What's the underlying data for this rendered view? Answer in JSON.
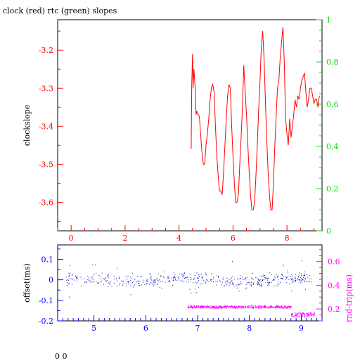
{
  "title": "clock (red) rtc (green) slopes",
  "footer": "0 0",
  "colors": {
    "frame": "#000000",
    "left_axis_top": "#ff0000",
    "right_axis_top": "#00e000",
    "clock_line": "#ff0000",
    "bottom_axis": "#0000ff",
    "offset_points": "#0000cc",
    "rtt_points": "#ff00ff",
    "right_axis_bottom": "#ff00ff"
  },
  "chart_data": [
    {
      "type": "line",
      "title": "clock (red) rtc (green) slopes",
      "ylabel": "clockslope",
      "xlim": [
        -0.5,
        9.3
      ],
      "ylim": [
        -3.675,
        -3.12
      ],
      "y2lim": [
        0,
        1
      ],
      "xticks": [
        0,
        2,
        4,
        6,
        8
      ],
      "yticks": [
        -3.2,
        -3.3,
        -3.4,
        -3.5,
        -3.6
      ],
      "y2ticks": [
        0,
        0.2,
        0.4,
        0.6,
        0.8,
        1
      ],
      "series": [
        {
          "name": "clock",
          "color": "red",
          "x": [
            4.45,
            4.47,
            4.5,
            4.52,
            4.55,
            4.58,
            4.6,
            4.63,
            4.66,
            4.7,
            4.73,
            4.76,
            4.8,
            4.85,
            4.9,
            4.95,
            5.0,
            5.05,
            5.1,
            5.15,
            5.2,
            5.25,
            5.3,
            5.35,
            5.4,
            5.45,
            5.5,
            5.55,
            5.6,
            5.65,
            5.7,
            5.75,
            5.8,
            5.85,
            5.9,
            5.95,
            6.0,
            6.05,
            6.1,
            6.15,
            6.2,
            6.25,
            6.3,
            6.35,
            6.4,
            6.45,
            6.5,
            6.55,
            6.6,
            6.65,
            6.7,
            6.75,
            6.8,
            6.85,
            6.9,
            6.95,
            7.0,
            7.05,
            7.1,
            7.15,
            7.2,
            7.25,
            7.3,
            7.35,
            7.4,
            7.45,
            7.5,
            7.55,
            7.6,
            7.65,
            7.7,
            7.75,
            7.8,
            7.85,
            7.9,
            7.95,
            8.0,
            8.05,
            8.1,
            8.15,
            8.2,
            8.25,
            8.3,
            8.35,
            8.4,
            8.45,
            8.5,
            8.55,
            8.6,
            8.65,
            8.7,
            8.75,
            8.8,
            8.85,
            8.9,
            8.95,
            9.0,
            9.05,
            9.1,
            9.15,
            9.2
          ],
          "y": [
            -3.46,
            -3.29,
            -3.21,
            -3.3,
            -3.25,
            -3.28,
            -3.3,
            -3.37,
            -3.36,
            -3.37,
            -3.37,
            -3.38,
            -3.42,
            -3.47,
            -3.5,
            -3.5,
            -3.45,
            -3.42,
            -3.38,
            -3.33,
            -3.3,
            -3.29,
            -3.31,
            -3.4,
            -3.48,
            -3.53,
            -3.57,
            -3.57,
            -3.58,
            -3.52,
            -3.45,
            -3.38,
            -3.32,
            -3.29,
            -3.3,
            -3.4,
            -3.48,
            -3.55,
            -3.6,
            -3.6,
            -3.58,
            -3.5,
            -3.43,
            -3.35,
            -3.24,
            -3.31,
            -3.37,
            -3.45,
            -3.52,
            -3.58,
            -3.62,
            -3.62,
            -3.6,
            -3.53,
            -3.45,
            -3.36,
            -3.28,
            -3.19,
            -3.15,
            -3.22,
            -3.33,
            -3.43,
            -3.52,
            -3.58,
            -3.62,
            -3.62,
            -3.55,
            -3.45,
            -3.37,
            -3.3,
            -3.28,
            -3.22,
            -3.18,
            -3.14,
            -3.23,
            -3.38,
            -3.42,
            -3.45,
            -3.38,
            -3.43,
            -3.4,
            -3.37,
            -3.33,
            -3.35,
            -3.32,
            -3.33,
            -3.3,
            -3.28,
            -3.27,
            -3.26,
            -3.31,
            -3.35,
            -3.33,
            -3.3,
            -3.3,
            -3.32,
            -3.34,
            -3.33,
            -3.33,
            -3.35,
            -3.32
          ]
        }
      ]
    },
    {
      "type": "scatter",
      "xlabel": "",
      "ylabel": "offset(ms)",
      "y2label": "rnd-trip(ms)",
      "xlim": [
        4.3,
        9.4
      ],
      "ylim": [
        -0.2,
        0.17
      ],
      "y2lim": [
        0.1,
        0.74
      ],
      "xticks": [
        5,
        6,
        7,
        8,
        9
      ],
      "yticks": [
        0.1,
        0,
        -0.1,
        -0.2
      ],
      "y2ticks": [
        0.6,
        0.4,
        0.2
      ],
      "series": [
        {
          "name": "offset",
          "color": "blue",
          "x_range": [
            4.45,
            9.2
          ],
          "center": 0.0,
          "spread": 0.03
        },
        {
          "name": "rnd-trip",
          "color": "magenta",
          "x_range": [
            6.8,
            9.25
          ],
          "center": 0.22,
          "spread": 0.012
        }
      ]
    }
  ]
}
